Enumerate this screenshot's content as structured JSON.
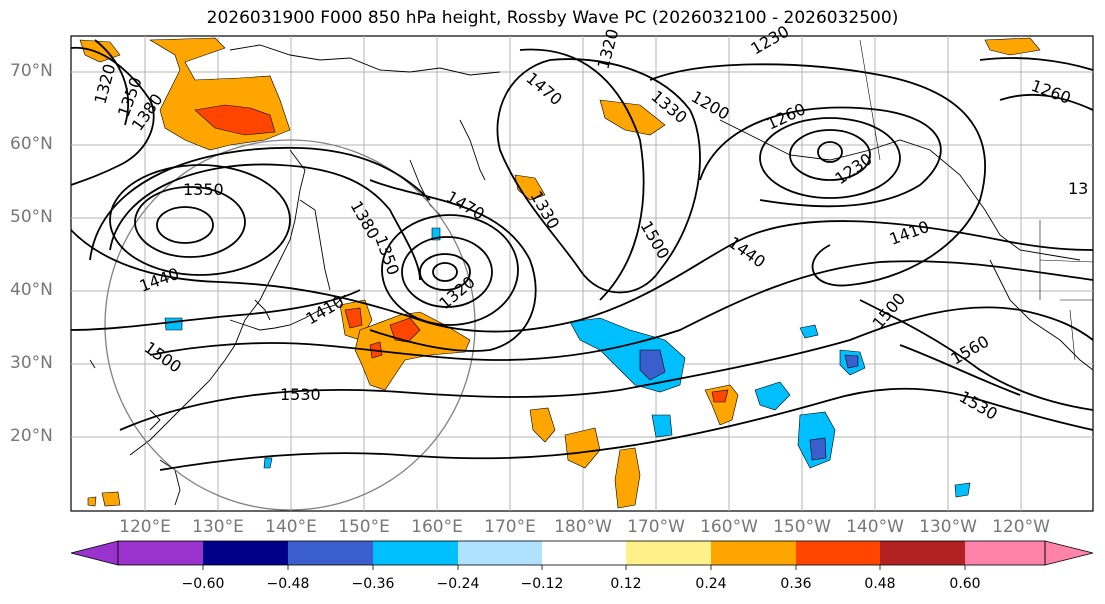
{
  "title": "2026031900 F000 850 hPa height, Rossby Wave PC (2026032100 - 2026032500)",
  "lat_labels": [
    "70°N",
    "60°N",
    "50°N",
    "40°N",
    "30°N",
    "20°N"
  ],
  "lon_labels": [
    "120°E",
    "130°E",
    "140°E",
    "150°E",
    "160°E",
    "170°E",
    "180°W",
    "170°W",
    "160°W",
    "150°W",
    "140°W",
    "130°W",
    "120°W"
  ],
  "contour_labels": [
    "1320",
    "1350",
    "1380",
    "1350",
    "1380",
    "1350",
    "1470",
    "1470",
    "1330",
    "1410",
    "1320",
    "1440",
    "1500",
    "1530",
    "1500",
    "1230",
    "1200",
    "1330",
    "1260",
    "1230",
    "1440",
    "1410",
    "13",
    "1500",
    "1560",
    "1530",
    "1260",
    "1320",
    "1230"
  ],
  "colorbar": {
    "colors": [
      "#9a32cd",
      "#00008b",
      "#3a5fcd",
      "#00bfff",
      "#b0e2ff",
      "#ffffff",
      "#fff08a",
      "#ffa500",
      "#ff4500",
      "#b22222",
      "#ff82ab"
    ],
    "ticks": [
      "−0.60",
      "−0.48",
      "−0.36",
      "−0.24",
      "−0.12",
      "0.12",
      "0.24",
      "0.36",
      "0.48",
      "0.60"
    ]
  },
  "legend_colors": {
    "negative_shade": "#00bfff",
    "positive_shade": "#ffa500",
    "contour": "#000000",
    "grid": "#aaaaaa",
    "circle": "#808080"
  }
}
